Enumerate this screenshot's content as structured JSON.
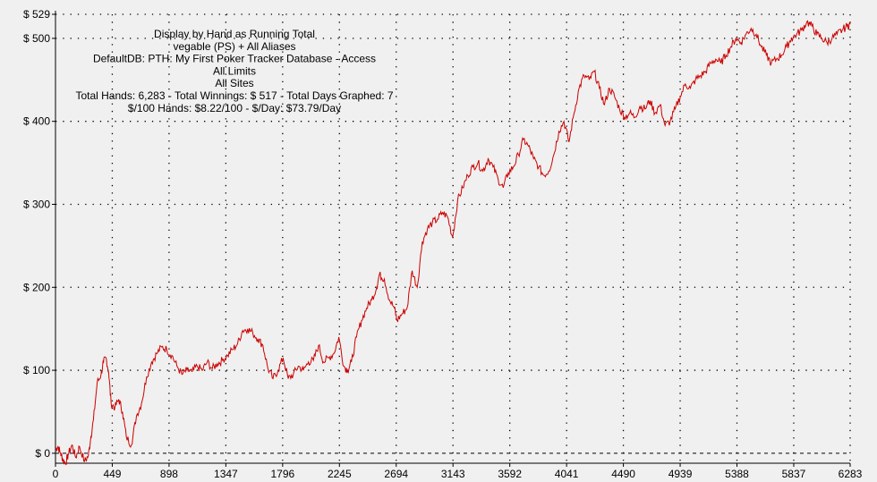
{
  "chart_data": {
    "type": "line",
    "title_lines": [
      "Display by Hand as Running Total",
      "vegable (PS) + All Aliases",
      "DefaultDB: PTH: My First Poker Tracker Database - Access",
      "All Limits",
      "All Sites",
      "Total Hands: 6,283 - Total Winnings: $ 517 - Total Days Graphed: 7",
      "$/100 Hands: $8.22/100 - $/Day: $73.79/Day"
    ],
    "xlabel": "",
    "ylabel": "",
    "xlim": [
      0,
      6283
    ],
    "ylim": [
      -12,
      529
    ],
    "x_ticks": [
      0,
      449,
      898,
      1347,
      1796,
      2245,
      2694,
      3143,
      3592,
      4041,
      4490,
      4939,
      5388,
      5837,
      6283
    ],
    "y_ticks": [
      {
        "value": 0,
        "label": "$ 0"
      },
      {
        "value": 100,
        "label": "$ 100"
      },
      {
        "value": 200,
        "label": "$ 200"
      },
      {
        "value": 300,
        "label": "$ 300"
      },
      {
        "value": 400,
        "label": "$ 400"
      },
      {
        "value": 500,
        "label": "$ 500"
      },
      {
        "value": 529,
        "label": "$ 529"
      }
    ],
    "grid": true,
    "legend": "none",
    "series": [
      {
        "color": "#cc0000",
        "x": [
          0,
          20,
          40,
          60,
          80,
          100,
          130,
          160,
          190,
          230,
          260,
          280,
          300,
          330,
          360,
          380,
          400,
          420,
          440,
          470,
          500,
          530,
          560,
          600,
          640,
          680,
          720,
          760,
          800,
          840,
          880,
          920,
          960,
          1000,
          1040,
          1080,
          1120,
          1160,
          1200,
          1240,
          1280,
          1320,
          1360,
          1400,
          1440,
          1480,
          1520,
          1560,
          1600,
          1640,
          1680,
          1720,
          1760,
          1800,
          1840,
          1880,
          1920,
          1960,
          2000,
          2040,
          2080,
          2120,
          2160,
          2200,
          2240,
          2280,
          2310,
          2340,
          2380,
          2420,
          2460,
          2500,
          2540,
          2560,
          2600,
          2640,
          2680,
          2700,
          2740,
          2780,
          2820,
          2860,
          2900,
          2940,
          2980,
          3020,
          3060,
          3100,
          3140,
          3180,
          3220,
          3260,
          3300,
          3340,
          3380,
          3420,
          3460,
          3500,
          3540,
          3580,
          3620,
          3660,
          3700,
          3740,
          3780,
          3820,
          3860,
          3900,
          3940,
          3980,
          4020,
          4060,
          4100,
          4140,
          4180,
          4220,
          4260,
          4300,
          4340,
          4380,
          4420,
          4460,
          4500,
          4540,
          4580,
          4620,
          4660,
          4700,
          4740,
          4780,
          4820,
          4860,
          4900,
          4940,
          4980,
          5020,
          5060,
          5100,
          5140,
          5180,
          5220,
          5260,
          5300,
          5340,
          5380,
          5420,
          5460,
          5500,
          5540,
          5580,
          5620,
          5660,
          5700,
          5740,
          5780,
          5820,
          5860,
          5900,
          5940,
          5980,
          6020,
          6060,
          6100,
          6140,
          6180,
          6220,
          6260,
          6283
        ],
        "values": [
          5,
          8,
          0,
          -8,
          -12,
          -2,
          10,
          -5,
          8,
          -10,
          -3,
          20,
          40,
          85,
          95,
          110,
          115,
          98,
          60,
          55,
          65,
          50,
          20,
          10,
          45,
          60,
          92,
          110,
          120,
          128,
          125,
          118,
          105,
          95,
          100,
          98,
          105,
          100,
          110,
          102,
          108,
          112,
          118,
          125,
          132,
          148,
          150,
          145,
          138,
          130,
          102,
          90,
          100,
          115,
          90,
          95,
          105,
          100,
          110,
          112,
          130,
          110,
          115,
          120,
          140,
          105,
          100,
          110,
          140,
          160,
          175,
          185,
          200,
          215,
          210,
          185,
          175,
          160,
          168,
          175,
          220,
          200,
          255,
          270,
          278,
          282,
          290,
          285,
          260,
          305,
          320,
          335,
          345,
          350,
          340,
          355,
          345,
          330,
          320,
          338,
          345,
          360,
          378,
          370,
          355,
          345,
          335,
          340,
          360,
          388,
          400,
          375,
          410,
          440,
          455,
          450,
          460,
          440,
          420,
          440,
          430,
          415,
          405,
          410,
          405,
          418,
          415,
          425,
          410,
          420,
          395,
          400,
          415,
          430,
          445,
          440,
          450,
          455,
          460,
          470,
          475,
          470,
          480,
          490,
          500,
          495,
          505,
          512,
          505,
          490,
          480,
          470,
          475,
          480,
          490,
          500,
          505,
          510,
          520,
          515,
          505,
          500,
          495,
          500,
          505,
          510,
          515,
          517
        ]
      }
    ]
  }
}
